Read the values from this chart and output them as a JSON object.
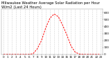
{
  "title": "Milwaukee Weather Average Solar Radiation per Hour W/m2 (Last 24 Hours)",
  "hours": [
    0,
    1,
    2,
    3,
    4,
    5,
    6,
    7,
    8,
    9,
    10,
    11,
    12,
    13,
    14,
    15,
    16,
    17,
    18,
    19,
    20,
    21,
    22,
    23
  ],
  "values": [
    0,
    0,
    0,
    0,
    0,
    0,
    0,
    10,
    80,
    200,
    380,
    520,
    580,
    540,
    420,
    280,
    120,
    30,
    5,
    0,
    0,
    0,
    0,
    0
  ],
  "line_color": "#ff0000",
  "bg_color": "#ffffff",
  "plot_bg_color": "#ffffff",
  "grid_color": "#aaaaaa",
  "tick_color": "#000000",
  "title_color": "#000000",
  "ylim": [
    0,
    650
  ],
  "xlim": [
    -0.5,
    23.5
  ],
  "yticks": [
    0,
    100,
    200,
    300,
    400,
    500,
    600
  ],
  "xticks": [
    0,
    1,
    2,
    3,
    4,
    5,
    6,
    7,
    8,
    9,
    10,
    11,
    12,
    13,
    14,
    15,
    16,
    17,
    18,
    19,
    20,
    21,
    22,
    23
  ],
  "title_fontsize": 3.8,
  "tick_fontsize": 3.0
}
